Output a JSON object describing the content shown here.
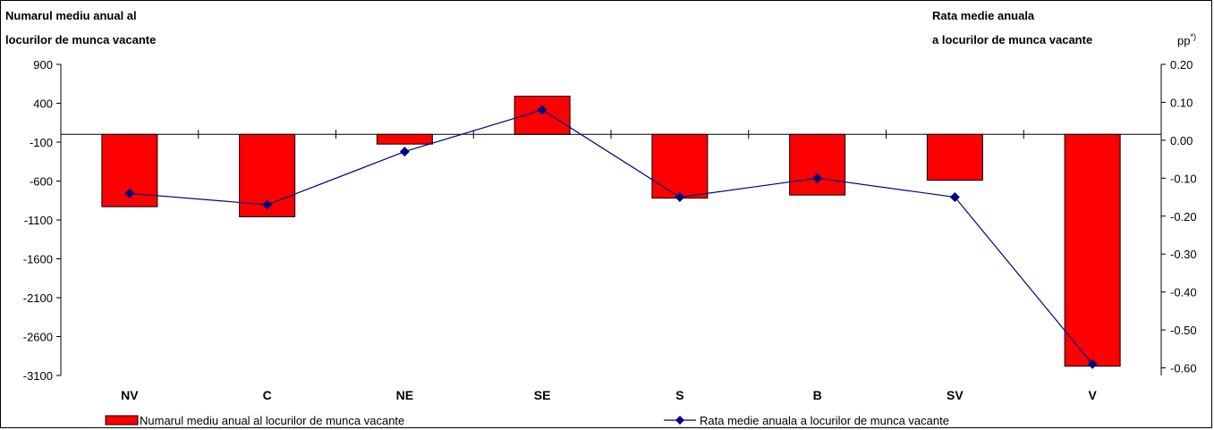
{
  "chart_data": {
    "type": "bar",
    "categories": [
      "NV",
      "C",
      "NE",
      "SE",
      "S",
      "B",
      "SV",
      "V"
    ],
    "series": [
      {
        "name": "Numarul mediu anual al locurilor de munca vacante",
        "type": "bar",
        "axis": "left",
        "color": "#FF0000",
        "values": [
          -930,
          -1060,
          -125,
          490,
          -820,
          -780,
          -590,
          -2980
        ]
      },
      {
        "name": "Rata medie anuala a locurilor de munca vacante",
        "type": "line",
        "axis": "right",
        "color": "#000080",
        "marker": "diamond",
        "values": [
          -0.14,
          -0.17,
          -0.03,
          0.08,
          -0.15,
          -0.1,
          -0.15,
          -0.59
        ]
      }
    ],
    "left_axis": {
      "title_line1": "Numarul mediu anual al",
      "title_line2": "locurilor de munca vacante",
      "ylim": [
        -3100,
        900
      ],
      "ticks": [
        900,
        400,
        -100,
        -600,
        -1100,
        -1600,
        -2100,
        -2600,
        -3100
      ],
      "zero_line": 0
    },
    "right_axis": {
      "title_line1": "Rata medie anuala",
      "title_line2": "a locurilor de munca vacante",
      "unit": "pp",
      "unit_sup": "*)",
      "ylim": [
        -0.62,
        0.2
      ],
      "ticks": [
        0.2,
        0.1,
        0.0,
        -0.1,
        -0.2,
        -0.3,
        -0.4,
        -0.5,
        -0.6
      ],
      "tick_labels": [
        "0.20",
        "0.10",
        "0.00",
        "-0.10",
        "-0.20",
        "-0.30",
        "-0.40",
        "-0.50",
        "-0.60"
      ]
    },
    "legend_position": "bottom",
    "grid": false
  }
}
